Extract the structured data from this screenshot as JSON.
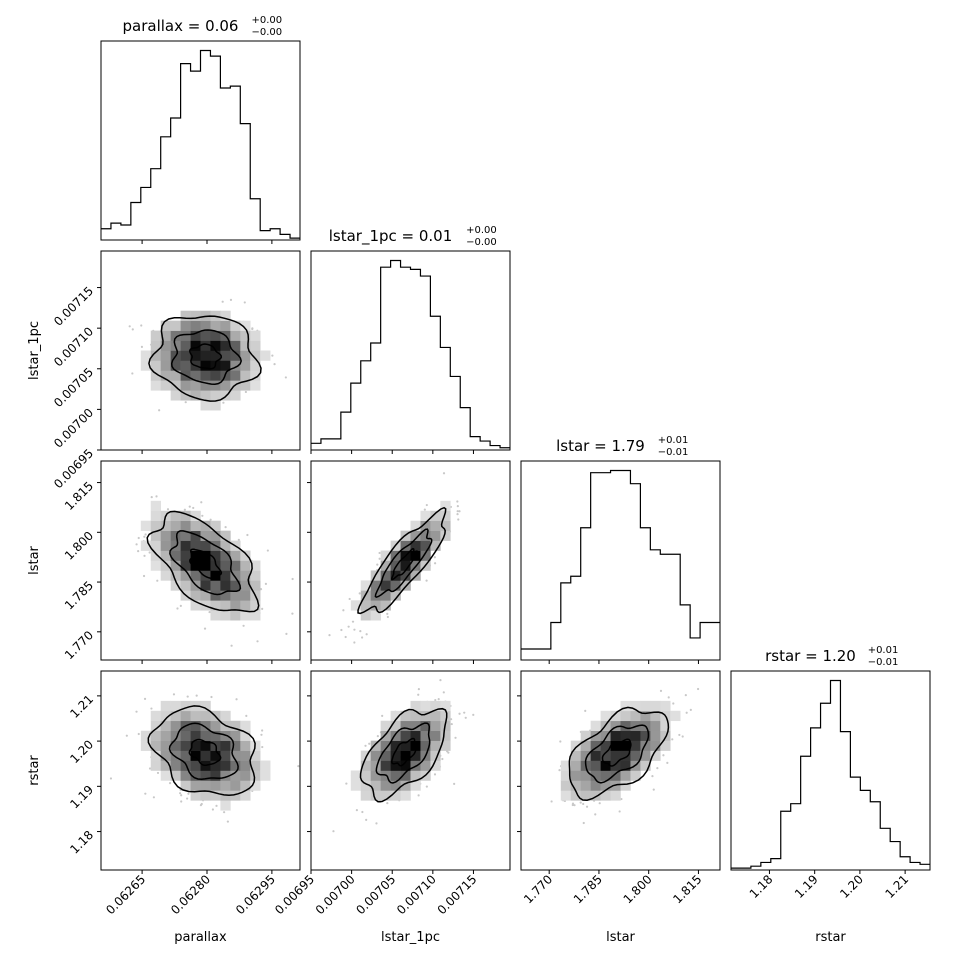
{
  "chart_data": {
    "type": "corner",
    "parameters": [
      "parallax",
      "lstar_1pc",
      "lstar",
      "rstar"
    ],
    "titles": [
      {
        "text": "parallax = 0.06",
        "plus": "+0.00",
        "minus": "−0.00"
      },
      {
        "text": "lstar_1pc = 0.01",
        "plus": "+0.00",
        "minus": "−0.00"
      },
      {
        "text": "lstar = 1.79",
        "plus": "+0.01",
        "minus": "−0.01"
      },
      {
        "text": "rstar = 1.20",
        "plus": "+0.01",
        "minus": "−0.01"
      }
    ],
    "axes": {
      "parallax": {
        "range": [
          0.062555,
          0.063015
        ],
        "ticks": [
          0.06265,
          0.0628,
          0.06295
        ],
        "tick_labels": [
          "0.06265",
          "0.06280",
          "0.06295"
        ]
      },
      "lstar_1pc": {
        "range": [
          0.00695,
          0.007195
        ],
        "ticks": [
          0.00695,
          0.007,
          0.00705,
          0.0071,
          0.00715
        ],
        "tick_labels": [
          "0.00695",
          "0.00700",
          "0.00705",
          "0.00710",
          "0.00715"
        ]
      },
      "lstar": {
        "range": [
          1.7615,
          1.8215
        ],
        "ticks": [
          1.77,
          1.785,
          1.8,
          1.815
        ],
        "tick_labels": [
          "1.770",
          "1.785",
          "1.800",
          "1.815"
        ]
      },
      "rstar": {
        "range": [
          1.1715,
          1.2155
        ],
        "ticks": [
          1.18,
          1.19,
          1.2,
          1.21
        ],
        "tick_labels": [
          "1.18",
          "1.19",
          "1.20",
          "1.21"
        ]
      }
    },
    "histograms": [
      {
        "param": "parallax",
        "counts": [
          6,
          9,
          8,
          20,
          28,
          38,
          55,
          65,
          94,
          90,
          101,
          98,
          81,
          82,
          62,
          22,
          5,
          6,
          3,
          1
        ]
      },
      {
        "param": "lstar_1pc",
        "counts": [
          3,
          5,
          5,
          17,
          30,
          40,
          48,
          82,
          85,
          82,
          81,
          78,
          60,
          46,
          33,
          19,
          6,
          4,
          2,
          1
        ]
      },
      {
        "param": "lstar",
        "counts": [
          5,
          5,
          5,
          17,
          35,
          38,
          60,
          85,
          85,
          86,
          86,
          80,
          60,
          50,
          48,
          48,
          25,
          10,
          17,
          17
        ]
      },
      {
        "param": "rstar",
        "counts": [
          1,
          1,
          2,
          4,
          6,
          31,
          35,
          60,
          75,
          88,
          100,
          73,
          49,
          42,
          36,
          22,
          15,
          7,
          4,
          3
        ]
      }
    ],
    "grid": false,
    "legend": "none"
  }
}
